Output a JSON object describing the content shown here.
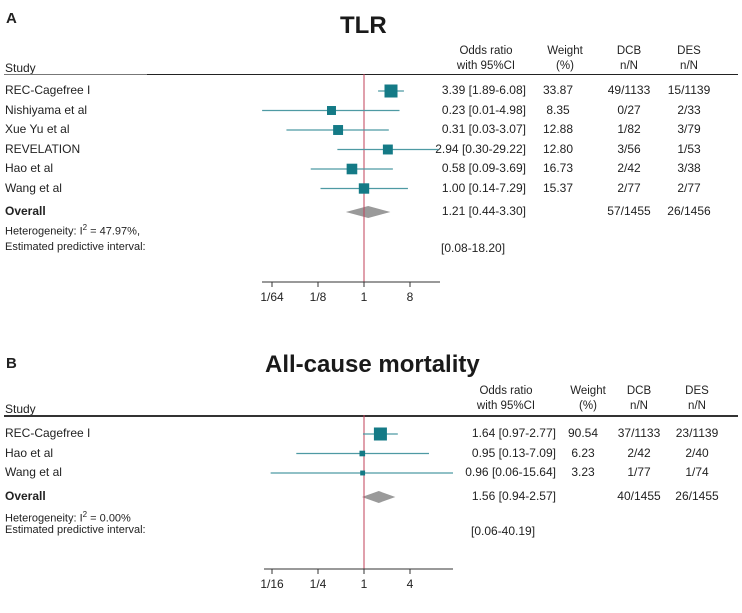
{
  "chart_data": [
    {
      "type": "forest",
      "panel": "A",
      "title": "TLR",
      "columns": {
        "study": "Study",
        "or_line1": "Odds ratio",
        "or_line2": "with 95%CI",
        "weight_line1": "Weight",
        "weight_line2": "(%)",
        "dcb_line1": "DCB",
        "dcb_line2": "n/N",
        "des_line1": "DES",
        "des_line2": "n/N"
      },
      "studies": [
        {
          "name": "REC-Cagefree I",
          "or": 3.39,
          "lo": 1.89,
          "hi": 6.08,
          "or_text": "3.39 [1.89-6.08]",
          "weight": 33.87,
          "weight_text": "33.87",
          "dcb": "49/1133",
          "des": "15/1139"
        },
        {
          "name": "Nishiyama et al",
          "or": 0.23,
          "lo": 0.01,
          "hi": 4.98,
          "or_text": "0.23 [0.01-4.98]",
          "weight": 8.35,
          "weight_text": "8.35",
          "dcb": "0/27",
          "des": "2/33"
        },
        {
          "name": "Xue Yu et al",
          "or": 0.31,
          "lo": 0.03,
          "hi": 3.07,
          "or_text": "0.31 [0.03-3.07]",
          "weight": 12.88,
          "weight_text": "12.88",
          "dcb": "1/82",
          "des": "3/79"
        },
        {
          "name": "REVELATION",
          "or": 2.94,
          "lo": 0.3,
          "hi": 29.22,
          "or_text": "2.94 [0.30-29.22]",
          "weight": 12.8,
          "weight_text": "12.80",
          "dcb": "3/56",
          "des": "1/53"
        },
        {
          "name": "Hao et al",
          "or": 0.58,
          "lo": 0.09,
          "hi": 3.69,
          "or_text": "0.58 [0.09-3.69]",
          "weight": 16.73,
          "weight_text": "16.73",
          "dcb": "2/42",
          "des": "3/38"
        },
        {
          "name": "Wang et al",
          "or": 1.0,
          "lo": 0.14,
          "hi": 7.29,
          "or_text": "1.00 [0.14-7.29]",
          "weight": 15.37,
          "weight_text": "15.37",
          "dcb": "2/77",
          "des": "2/77"
        }
      ],
      "overall": {
        "label": "Overall",
        "or": 1.21,
        "lo": 0.44,
        "hi": 3.3,
        "or_text": "1.21 [0.44-3.30]",
        "dcb": "57/1455",
        "des": "26/1456"
      },
      "heterogeneity_prefix": "Heterogeneity: I",
      "heterogeneity_sup": "2",
      "heterogeneity_suffix": " = 47.97%,",
      "predictive_label": "Estimated predictive interval:",
      "predictive_text": "[0.08-18.20]",
      "xscale": "log",
      "xticks": [
        0.015625,
        0.125,
        1,
        8
      ],
      "xtick_labels": [
        "1/64",
        "1/8",
        "1",
        "8"
      ],
      "xlim": [
        0.0105,
        22
      ],
      "reference_line": 1,
      "colors": {
        "box": "#147a86",
        "ci": "#4e9aa3",
        "diamond": "#9a9a9a",
        "refline": "#c0405a",
        "axis": "#333333"
      }
    },
    {
      "type": "forest",
      "panel": "B",
      "title": "All-cause mortality",
      "columns": {
        "study": "Study",
        "or_line1": "Odds ratio",
        "or_line2": "with 95%CI",
        "weight_line1": "Weight",
        "weight_line2": "(%)",
        "dcb_line1": "DCB",
        "dcb_line2": "n/N",
        "des_line1": "DES",
        "des_line2": "n/N"
      },
      "studies": [
        {
          "name": "REC-Cagefree I",
          "or": 1.64,
          "lo": 0.97,
          "hi": 2.77,
          "or_text": "1.64 [0.97-2.77]",
          "weight": 90.54,
          "weight_text": "90.54",
          "dcb": "37/1133",
          "des": "23/1139"
        },
        {
          "name": "Hao et al",
          "or": 0.95,
          "lo": 0.13,
          "hi": 7.09,
          "or_text": "0.95 [0.13-7.09]",
          "weight": 6.23,
          "weight_text": "6.23",
          "dcb": "2/42",
          "des": "2/40"
        },
        {
          "name": "Wang et al",
          "or": 0.96,
          "lo": 0.06,
          "hi": 15.64,
          "or_text": "0.96 [0.06-15.64]",
          "weight": 3.23,
          "weight_text": "3.23",
          "dcb": "1/77",
          "des": "1/74"
        }
      ],
      "overall": {
        "label": "Overall",
        "or": 1.56,
        "lo": 0.94,
        "hi": 2.57,
        "or_text": "1.56 [0.94-2.57]",
        "dcb": "40/1455",
        "des": "26/1455"
      },
      "heterogeneity_prefix": "Heterogeneity: I",
      "heterogeneity_sup": "2",
      "heterogeneity_suffix": " = 0.00%",
      "predictive_label": "Estimated predictive interval:",
      "predictive_text": "[0.06-40.19]",
      "xscale": "log",
      "xticks": [
        0.0625,
        0.25,
        1,
        4
      ],
      "xtick_labels": [
        "1/16",
        "1/4",
        "1",
        "4"
      ],
      "xlim": [
        0.048,
        14
      ],
      "reference_line": 1,
      "colors": {
        "box": "#147a86",
        "ci": "#4e9aa3",
        "diamond": "#9a9a9a",
        "refline": "#c0405a",
        "axis": "#333333"
      }
    }
  ]
}
